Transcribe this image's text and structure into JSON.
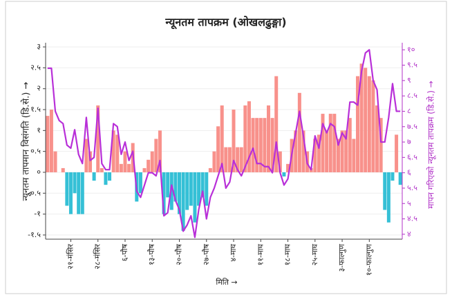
{
  "chart_data": {
    "type": "bar",
    "title": "न्यूनतम तापक्रम (ओखलढुङ्गा)",
    "xlabel": "मिति →",
    "ylabel": "न्यूनतम तापमान विसंगति (डि.से.) →",
    "y2label": "मापन गरिएको न्यूनतम तापक्रम (डि.से.) →",
    "categories": [
      null,
      null,
      null,
      null,
      null,
      null,
      "२१-मंसिर",
      null,
      null,
      null,
      null,
      null,
      null,
      "२८-मंसिर",
      null,
      null,
      null,
      null,
      null,
      null,
      "६-पौष",
      null,
      null,
      null,
      null,
      null,
      null,
      "१३-पौष",
      null,
      null,
      null,
      null,
      null,
      null,
      "२०-पौष",
      null,
      null,
      null,
      null,
      null,
      null,
      "२७-पौष",
      null,
      null,
      null,
      null,
      null,
      null,
      "४-माघ",
      null,
      null,
      null,
      null,
      null,
      null,
      "११-माघ",
      null,
      null,
      null,
      null,
      null,
      null,
      "१८-माघ",
      null,
      null,
      null,
      null,
      null,
      null,
      "२५-माघ",
      null,
      null,
      null,
      null,
      null,
      null,
      "३-फाल्गुण",
      null,
      null,
      null,
      null,
      null,
      null,
      "१०-फाल्गुण",
      null,
      null,
      null,
      null,
      null,
      null,
      null,
      null
    ],
    "series": [
      {
        "type": "bar",
        "color_positive": "#f8918b",
        "color_negative": "#35c0d6",
        "values": [
          1.35,
          1.5,
          0.5,
          0,
          0.1,
          -0.8,
          -1.0,
          -0.5,
          -1.0,
          -1.0,
          0.8,
          0.5,
          -0.2,
          1.6,
          0.1,
          -0.3,
          -0.2,
          1.0,
          0.9,
          0.2,
          0.5,
          0.2,
          0.7,
          -0.7,
          -0.5,
          0.1,
          0.3,
          0.5,
          0.8,
          1.0,
          -1.0,
          -0.6,
          -0.9,
          -0.7,
          -1.0,
          -1.4,
          -0.9,
          -0.8,
          -1.2,
          -0.8,
          -0.6,
          -0.8,
          0.1,
          0.5,
          1.1,
          1.6,
          0.6,
          0.6,
          1.5,
          0.6,
          0.6,
          1.6,
          1.7,
          1.3,
          1.3,
          1.3,
          1.3,
          1.6,
          1.3,
          2.3,
          0.5,
          -0.1,
          0.2,
          0.8,
          1.0,
          1.9,
          1.0,
          0.5,
          0.1,
          0.8,
          0.9,
          1.4,
          1.0,
          1.4,
          1.4,
          0.8,
          1.0,
          1.0,
          1.3,
          0.8,
          2.3,
          2.6,
          2.5,
          2.3,
          2.2,
          1.6,
          1.3,
          -0.9,
          -1.2,
          -0.2,
          0.9,
          -0.3
        ]
      },
      {
        "type": "line",
        "axis": "y2",
        "color": "#b82fd8",
        "values": [
          9.4,
          9.4,
          8.0,
          7.7,
          7.6,
          6.9,
          6.8,
          7.4,
          6.6,
          6.3,
          7.8,
          6.4,
          6.5,
          8.1,
          6.3,
          6.1,
          6.1,
          7.6,
          7.5,
          6.6,
          7.0,
          6.4,
          6.7,
          5.4,
          5.2,
          5.6,
          6.0,
          6.0,
          5.9,
          6.4,
          4.6,
          4.7,
          5.6,
          5.1,
          4.8,
          4.1,
          4.3,
          4.6,
          3.9,
          4.8,
          5.4,
          4.5,
          5.2,
          5.5,
          5.9,
          6.3,
          5.5,
          5.7,
          6.4,
          6.1,
          5.9,
          6.2,
          6.5,
          6.8,
          6.3,
          6.3,
          6.2,
          6.2,
          6.0,
          7.0,
          6.0,
          5.6,
          5.8,
          6.6,
          7.3,
          8.0,
          7.2,
          6.3,
          6.1,
          7.2,
          6.8,
          7.6,
          7.3,
          7.6,
          7.5,
          6.9,
          7.3,
          7.1,
          8.3,
          8.3,
          8.2,
          9.3,
          9.9,
          10.0,
          9.0,
          8.7,
          7.0,
          7.0,
          7.8,
          8.9,
          8.0,
          8.0
        ]
      }
    ],
    "ylim": [
      -1.6,
      3.1
    ],
    "yticks": [
      {
        "value": 3,
        "label": "३"
      },
      {
        "value": 2.5,
        "label": "२.५"
      },
      {
        "value": 2,
        "label": "२"
      },
      {
        "value": 1.5,
        "label": "१.५"
      },
      {
        "value": 1,
        "label": "१"
      },
      {
        "value": 0.5,
        "label": "०.५"
      },
      {
        "value": 0,
        "label": "०"
      },
      {
        "value": -0.5,
        "label": "-०.५"
      },
      {
        "value": -1,
        "label": "-१"
      },
      {
        "value": -1.5,
        "label": "-१.५"
      }
    ],
    "y2lim": [
      3.84,
      10.23
    ],
    "y2ticks": [
      {
        "value": 10,
        "label": "१०"
      },
      {
        "value": 9.5,
        "label": "९.५"
      },
      {
        "value": 9,
        "label": "९"
      },
      {
        "value": 8.5,
        "label": "८.५"
      },
      {
        "value": 8,
        "label": "८"
      },
      {
        "value": 7.5,
        "label": "७.५"
      },
      {
        "value": 7,
        "label": "७"
      },
      {
        "value": 6.5,
        "label": "६.५"
      },
      {
        "value": 6,
        "label": "६"
      },
      {
        "value": 5.5,
        "label": "५.५"
      },
      {
        "value": 5,
        "label": "५"
      },
      {
        "value": 4.5,
        "label": "४.५"
      },
      {
        "value": 4,
        "label": "४"
      }
    ],
    "grid": true
  }
}
